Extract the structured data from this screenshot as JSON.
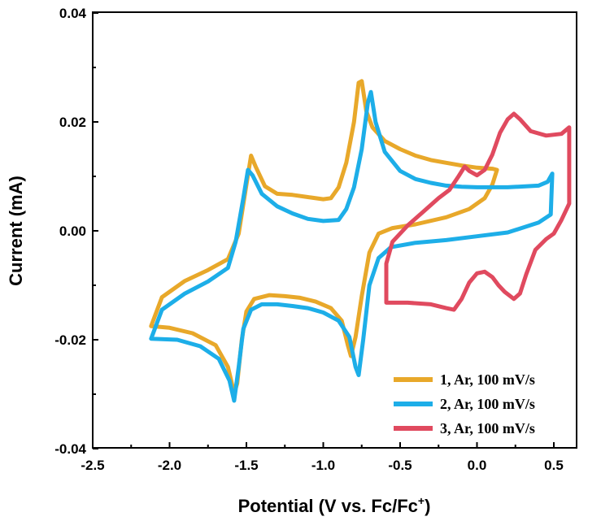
{
  "chart_data": {
    "type": "line",
    "xlabel": "Potential (V vs. Fc/Fc",
    "xlabel_sup": "+",
    "xlabel_end": ")",
    "ylabel": "Current (mA)",
    "xlim": [
      -2.5,
      0.7
    ],
    "ylim": [
      -0.04,
      0.04
    ],
    "x_ticks": [
      -2.5,
      -2.0,
      -1.5,
      -1.0,
      -0.5,
      0.0,
      0.5
    ],
    "x_tick_labels": [
      "-2.5",
      "-2.0",
      "-1.5",
      "-1.0",
      "-0.5",
      "0.0",
      "0.5"
    ],
    "y_ticks": [
      -0.04,
      -0.02,
      0.0,
      0.02,
      0.04
    ],
    "y_tick_labels": [
      "-0.04",
      "-0.02",
      "0.00",
      "0.02",
      "0.04"
    ],
    "grid": false,
    "legend_position": "bottom-right",
    "series": [
      {
        "name": "1, Ar, 100 mV/s",
        "color": "#E8A82A",
        "points": [
          [
            -2.12,
            -0.0175
          ],
          [
            -2.05,
            -0.0122
          ],
          [
            -1.9,
            -0.0092
          ],
          [
            -1.75,
            -0.0072
          ],
          [
            -1.62,
            -0.0052
          ],
          [
            -1.55,
            -0.0005
          ],
          [
            -1.5,
            0.0085
          ],
          [
            -1.47,
            0.0138
          ],
          [
            -1.44,
            0.0118
          ],
          [
            -1.38,
            0.0082
          ],
          [
            -1.3,
            0.0068
          ],
          [
            -1.2,
            0.0066
          ],
          [
            -1.1,
            0.0062
          ],
          [
            -1.0,
            0.0058
          ],
          [
            -0.95,
            0.006
          ],
          [
            -0.9,
            0.008
          ],
          [
            -0.85,
            0.0125
          ],
          [
            -0.8,
            0.02
          ],
          [
            -0.77,
            0.0272
          ],
          [
            -0.75,
            0.0275
          ],
          [
            -0.72,
            0.022
          ],
          [
            -0.68,
            0.019
          ],
          [
            -0.6,
            0.0165
          ],
          [
            -0.5,
            0.015
          ],
          [
            -0.4,
            0.0138
          ],
          [
            -0.3,
            0.013
          ],
          [
            -0.2,
            0.0125
          ],
          [
            -0.1,
            0.012
          ],
          [
            0.0,
            0.0116
          ],
          [
            0.1,
            0.0114
          ],
          [
            0.13,
            0.0112
          ],
          [
            0.1,
            0.0085
          ],
          [
            0.05,
            0.006
          ],
          [
            -0.05,
            0.004
          ],
          [
            -0.2,
            0.0025
          ],
          [
            -0.4,
            0.0012
          ],
          [
            -0.55,
            0.0005
          ],
          [
            -0.64,
            -0.0005
          ],
          [
            -0.7,
            -0.004
          ],
          [
            -0.75,
            -0.012
          ],
          [
            -0.79,
            -0.0195
          ],
          [
            -0.82,
            -0.023
          ],
          [
            -0.84,
            -0.021
          ],
          [
            -0.88,
            -0.0165
          ],
          [
            -0.95,
            -0.0142
          ],
          [
            -1.05,
            -0.013
          ],
          [
            -1.15,
            -0.0123
          ],
          [
            -1.25,
            -0.012
          ],
          [
            -1.35,
            -0.0118
          ],
          [
            -1.45,
            -0.0125
          ],
          [
            -1.5,
            -0.0148
          ],
          [
            -1.53,
            -0.02
          ],
          [
            -1.56,
            -0.028
          ],
          [
            -1.58,
            -0.0298
          ],
          [
            -1.62,
            -0.025
          ],
          [
            -1.7,
            -0.021
          ],
          [
            -1.85,
            -0.0188
          ],
          [
            -2.0,
            -0.0178
          ],
          [
            -2.12,
            -0.0175
          ]
        ]
      },
      {
        "name": "2, Ar, 100 mV/s",
        "color": "#1DAEE8",
        "points": [
          [
            -2.12,
            -0.0198
          ],
          [
            -2.05,
            -0.0145
          ],
          [
            -1.9,
            -0.0115
          ],
          [
            -1.75,
            -0.0093
          ],
          [
            -1.62,
            -0.0068
          ],
          [
            -1.57,
            -0.002
          ],
          [
            -1.52,
            0.006
          ],
          [
            -1.49,
            0.0112
          ],
          [
            -1.46,
            0.0102
          ],
          [
            -1.4,
            0.0068
          ],
          [
            -1.3,
            0.0045
          ],
          [
            -1.2,
            0.0032
          ],
          [
            -1.1,
            0.0022
          ],
          [
            -1.0,
            0.0018
          ],
          [
            -0.9,
            0.002
          ],
          [
            -0.85,
            0.004
          ],
          [
            -0.8,
            0.008
          ],
          [
            -0.75,
            0.015
          ],
          [
            -0.71,
            0.0235
          ],
          [
            -0.69,
            0.0255
          ],
          [
            -0.66,
            0.02
          ],
          [
            -0.6,
            0.0145
          ],
          [
            -0.5,
            0.011
          ],
          [
            -0.4,
            0.0095
          ],
          [
            -0.3,
            0.0088
          ],
          [
            -0.2,
            0.0083
          ],
          [
            -0.1,
            0.0081
          ],
          [
            0.0,
            0.008
          ],
          [
            0.2,
            0.008
          ],
          [
            0.4,
            0.0083
          ],
          [
            0.46,
            0.009
          ],
          [
            0.49,
            0.0105
          ],
          [
            0.48,
            0.003
          ],
          [
            0.4,
            0.0015
          ],
          [
            0.2,
            -0.0003
          ],
          [
            0.0,
            -0.001
          ],
          [
            -0.2,
            -0.0017
          ],
          [
            -0.4,
            -0.0022
          ],
          [
            -0.56,
            -0.003
          ],
          [
            -0.64,
            -0.005
          ],
          [
            -0.7,
            -0.01
          ],
          [
            -0.74,
            -0.02
          ],
          [
            -0.77,
            -0.0265
          ],
          [
            -0.79,
            -0.025
          ],
          [
            -0.83,
            -0.0195
          ],
          [
            -0.9,
            -0.0165
          ],
          [
            -1.0,
            -0.015
          ],
          [
            -1.1,
            -0.0142
          ],
          [
            -1.2,
            -0.0138
          ],
          [
            -1.3,
            -0.0135
          ],
          [
            -1.4,
            -0.0135
          ],
          [
            -1.47,
            -0.0145
          ],
          [
            -1.52,
            -0.018
          ],
          [
            -1.55,
            -0.025
          ],
          [
            -1.58,
            -0.0312
          ],
          [
            -1.61,
            -0.0275
          ],
          [
            -1.68,
            -0.0235
          ],
          [
            -1.8,
            -0.0212
          ],
          [
            -1.95,
            -0.02
          ],
          [
            -2.12,
            -0.0198
          ]
        ]
      },
      {
        "name": "3, Ar, 100 mV/s",
        "color": "#E04A5F",
        "points": [
          [
            -0.59,
            -0.0132
          ],
          [
            -0.59,
            -0.006
          ],
          [
            -0.55,
            -0.002
          ],
          [
            -0.45,
            0.001
          ],
          [
            -0.35,
            0.0035
          ],
          [
            -0.25,
            0.006
          ],
          [
            -0.18,
            0.0075
          ],
          [
            -0.12,
            0.01
          ],
          [
            -0.08,
            0.0118
          ],
          [
            -0.05,
            0.011
          ],
          [
            0.0,
            0.0102
          ],
          [
            0.05,
            0.0112
          ],
          [
            0.1,
            0.014
          ],
          [
            0.15,
            0.018
          ],
          [
            0.2,
            0.0205
          ],
          [
            0.24,
            0.0215
          ],
          [
            0.28,
            0.0205
          ],
          [
            0.35,
            0.0183
          ],
          [
            0.45,
            0.0175
          ],
          [
            0.55,
            0.0178
          ],
          [
            0.6,
            0.019
          ],
          [
            0.6,
            0.005
          ],
          [
            0.55,
            0.002
          ],
          [
            0.5,
            -0.0005
          ],
          [
            0.45,
            -0.0015
          ],
          [
            0.38,
            -0.0035
          ],
          [
            0.32,
            -0.008
          ],
          [
            0.28,
            -0.0115
          ],
          [
            0.24,
            -0.0125
          ],
          [
            0.18,
            -0.0112
          ],
          [
            0.14,
            -0.01
          ],
          [
            0.1,
            -0.0085
          ],
          [
            0.05,
            -0.0075
          ],
          [
            0.0,
            -0.0078
          ],
          [
            -0.05,
            -0.0095
          ],
          [
            -0.1,
            -0.0125
          ],
          [
            -0.15,
            -0.0145
          ],
          [
            -0.2,
            -0.0142
          ],
          [
            -0.3,
            -0.0135
          ],
          [
            -0.45,
            -0.0132
          ],
          [
            -0.59,
            -0.0132
          ]
        ]
      }
    ]
  }
}
